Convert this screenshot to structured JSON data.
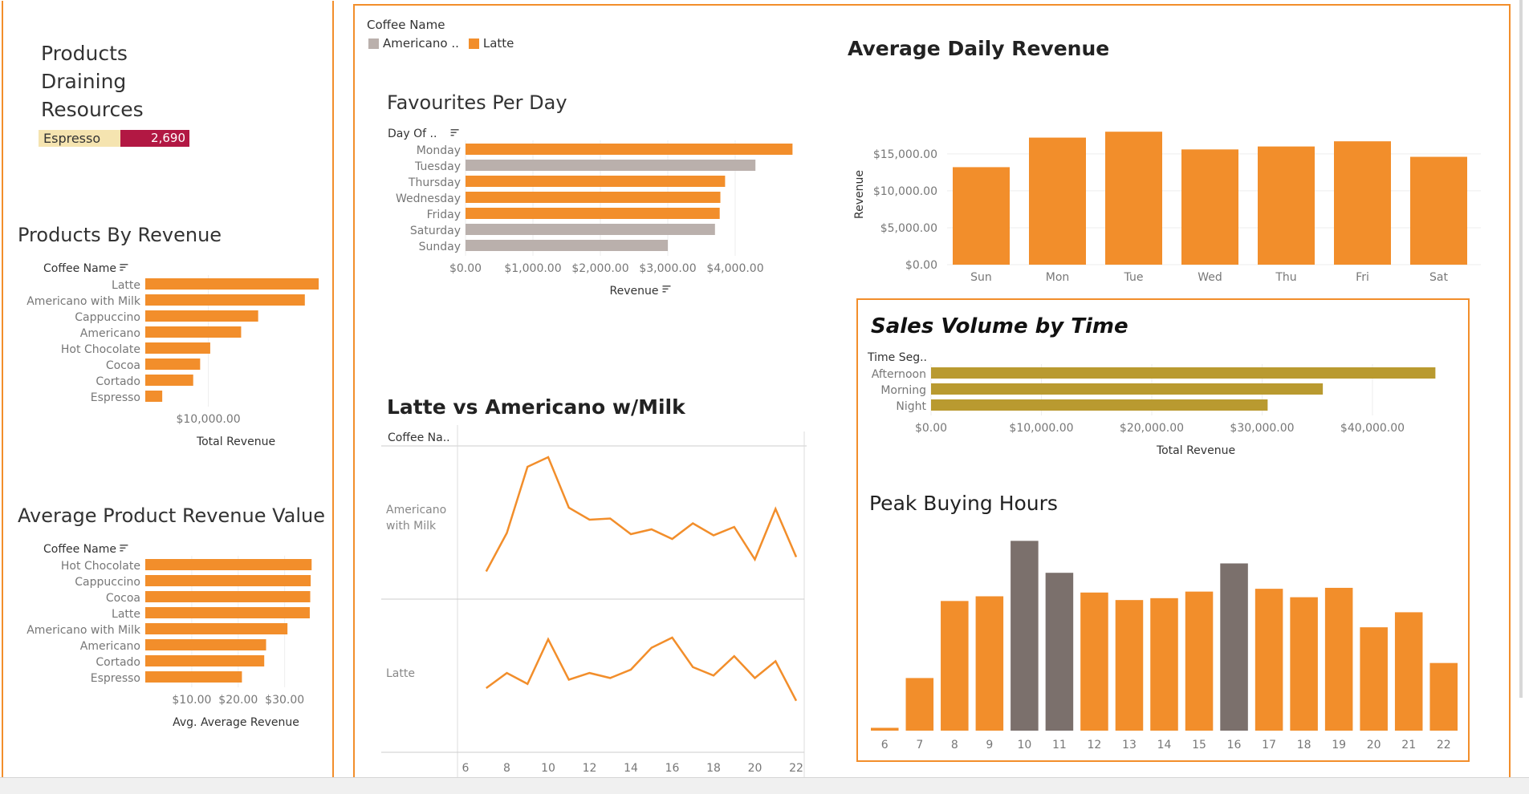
{
  "left": {
    "title": [
      "Products",
      "Draining",
      "Resources"
    ],
    "drain_product": "Espresso",
    "drain_value": "2,690",
    "by_revenue_title": "Products By Revenue",
    "avg_value_title": "Average Product Revenue Value"
  },
  "legend": {
    "title": "Coffee Name",
    "items": [
      "Americano ..",
      "Latte"
    ]
  },
  "colors": {
    "orange": "#f28e2b",
    "gray": "#bab0ac",
    "olive": "#b99a30",
    "darkgray": "#7b706c",
    "border": "#f28e2b",
    "crimson": "#b21843",
    "cream": "#f5e4b0"
  },
  "chart_data": [
    {
      "id": "products_by_revenue",
      "type": "bar",
      "orientation": "horizontal",
      "title": "Products By Revenue",
      "dim_header": "Coffee Name",
      "categories": [
        "Latte",
        "Americano with Milk",
        "Cappuccino",
        "Americano",
        "Hot Chocolate",
        "Cocoa",
        "Cortado",
        "Espresso"
      ],
      "values": [
        27500,
        25300,
        17900,
        15200,
        10300,
        8700,
        7600,
        2690
      ],
      "xlabel": "Total Revenue",
      "ticks": [
        10000
      ],
      "tick_labels": [
        "$10,000.00"
      ],
      "xlim": [
        0,
        28000
      ]
    },
    {
      "id": "avg_product_revenue",
      "type": "bar",
      "orientation": "horizontal",
      "title": "Average Product Revenue Value",
      "dim_header": "Coffee Name",
      "categories": [
        "Hot Chocolate",
        "Cappuccino",
        "Cocoa",
        "Latte",
        "Americano with Milk",
        "Americano",
        "Cortado",
        "Espresso"
      ],
      "values": [
        35.8,
        35.6,
        35.5,
        35.4,
        30.6,
        26.0,
        25.6,
        20.8
      ],
      "xlabel": "Avg. Average Revenue",
      "ticks": [
        10,
        20,
        30
      ],
      "tick_labels": [
        "$10.00",
        "$20.00",
        "$30.00"
      ],
      "xlim": [
        0,
        38
      ]
    },
    {
      "id": "favourites_per_day",
      "type": "bar",
      "orientation": "horizontal",
      "title": "Favourites Per Day",
      "dim_header": "Day Of ..",
      "categories": [
        "Monday",
        "Tuesday",
        "Thursday",
        "Wednesday",
        "Friday",
        "Saturday",
        "Sunday"
      ],
      "values": [
        4850,
        4300,
        3850,
        3780,
        3770,
        3700,
        3000
      ],
      "series_color": [
        "Latte",
        "Americano ..",
        "Latte",
        "Latte",
        "Latte",
        "Americano ..",
        "Americano .."
      ],
      "xlabel": "Revenue",
      "ticks": [
        0,
        1000,
        2000,
        3000,
        4000
      ],
      "tick_labels": [
        "$0.00",
        "$1,000.00",
        "$2,000.00",
        "$3,000.00",
        "$4,000.00"
      ],
      "xlim": [
        0,
        5000
      ]
    },
    {
      "id": "avg_daily_revenue",
      "type": "bar",
      "orientation": "vertical",
      "title": "Average Daily Revenue",
      "categories": [
        "Sun",
        "Mon",
        "Tue",
        "Wed",
        "Thu",
        "Fri",
        "Sat"
      ],
      "values": [
        13200,
        17200,
        18000,
        15600,
        16000,
        16700,
        14600
      ],
      "ylabel": "Revenue",
      "ticks": [
        0,
        5000,
        10000,
        15000
      ],
      "tick_labels": [
        "$0.00",
        "$5,000.00",
        "$10,000.00",
        "$15,000.00"
      ],
      "ylim": [
        0,
        19000
      ]
    },
    {
      "id": "latte_vs_americano",
      "type": "line",
      "title": "Latte vs Americano w/Milk",
      "dim_header": "Coffee Na..",
      "x": [
        7,
        8,
        9,
        10,
        11,
        12,
        13,
        14,
        15,
        16,
        17,
        18,
        19,
        20,
        21,
        22
      ],
      "series": [
        {
          "name": "Americano with Milk",
          "label": "Americano with Milk",
          "values": [
            5,
            37,
            92,
            100,
            58,
            48,
            49,
            36,
            40,
            32,
            45,
            35,
            42,
            15,
            57,
            17
          ]
        },
        {
          "name": "Latte",
          "label": "Latte",
          "values": [
            40,
            58,
            45,
            98,
            50,
            58,
            52,
            62,
            88,
            100,
            65,
            55,
            78,
            52,
            72,
            25
          ]
        }
      ],
      "ticks": [
        6,
        8,
        10,
        12,
        14,
        16,
        18,
        20,
        22
      ]
    },
    {
      "id": "sales_volume_by_time",
      "type": "bar",
      "orientation": "horizontal",
      "title": "Sales Volume by Time",
      "dim_header": "Time Seg..",
      "categories": [
        "Afternoon",
        "Morning",
        "Night"
      ],
      "values": [
        45700,
        35500,
        30500
      ],
      "xlabel": "Total Revenue",
      "ticks": [
        0,
        10000,
        20000,
        30000,
        40000
      ],
      "tick_labels": [
        "$0.00",
        "$10,000.00",
        "$20,000.00",
        "$30,000.00",
        "$40,000.00"
      ],
      "xlim": [
        0,
        48000
      ]
    },
    {
      "id": "peak_buying_hours",
      "type": "bar",
      "orientation": "vertical",
      "title": "Peak Buying Hours",
      "categories": [
        "6",
        "7",
        "8",
        "9",
        "10",
        "11",
        "12",
        "13",
        "14",
        "15",
        "16",
        "17",
        "18",
        "19",
        "20",
        "21",
        "22"
      ],
      "values": [
        3,
        56,
        138,
        143,
        202,
        168,
        147,
        139,
        141,
        148,
        178,
        151,
        142,
        152,
        110,
        126,
        72
      ],
      "highlight": [
        false,
        false,
        false,
        false,
        true,
        true,
        false,
        false,
        false,
        false,
        true,
        false,
        false,
        false,
        false,
        false,
        false
      ],
      "ylim": [
        0,
        210
      ]
    }
  ]
}
